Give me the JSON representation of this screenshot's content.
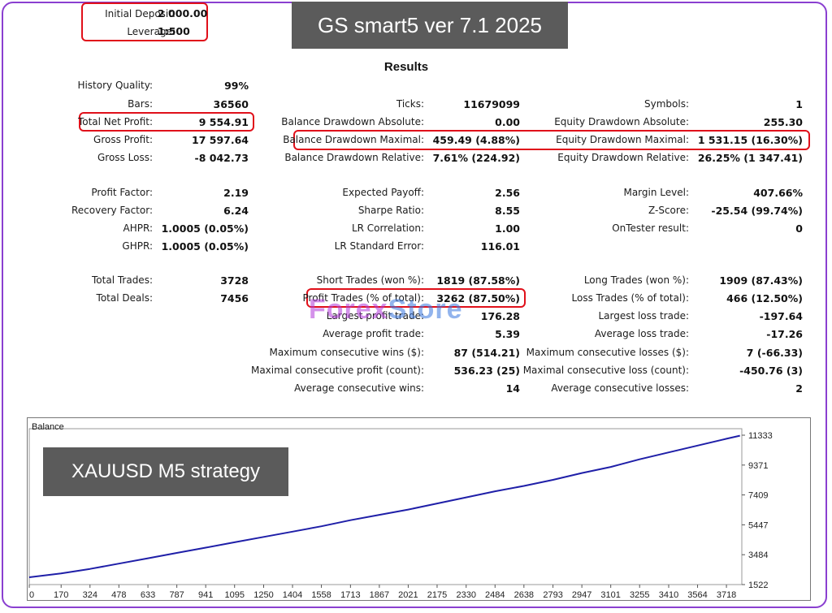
{
  "header": {
    "initial_deposit_label": "Initial Deposit:",
    "initial_deposit_value": "2 000.00",
    "leverage_label": "Leverage:",
    "leverage_value": "1:500",
    "banner_title": "GS smart5 ver 7.1 2025",
    "results_title": "Results"
  },
  "col1": [
    {
      "label": "History Quality:",
      "value": "99%"
    },
    {
      "label": "Bars:",
      "value": "36560"
    },
    {
      "label": "Total Net Profit:",
      "value": "9 554.91"
    },
    {
      "label": "Gross Profit:",
      "value": "17 597.64"
    },
    {
      "label": "Gross Loss:",
      "value": "-8 042.73"
    },
    {
      "label": "Profit Factor:",
      "value": "2.19"
    },
    {
      "label": "Recovery Factor:",
      "value": "6.24"
    },
    {
      "label": "AHPR:",
      "value": "1.0005 (0.05%)"
    },
    {
      "label": "GHPR:",
      "value": "1.0005 (0.05%)"
    },
    {
      "label": "Total Trades:",
      "value": "3728"
    },
    {
      "label": "Total Deals:",
      "value": "7456"
    }
  ],
  "col2": [
    {
      "label": "Ticks:",
      "value": "11679099"
    },
    {
      "label": "Balance Drawdown Absolute:",
      "value": "0.00"
    },
    {
      "label": "Balance Drawdown Maximal:",
      "value": "459.49 (4.88%)"
    },
    {
      "label": "Balance Drawdown Relative:",
      "value": "7.61% (224.92)"
    },
    {
      "label": "Expected Payoff:",
      "value": "2.56"
    },
    {
      "label": "Sharpe Ratio:",
      "value": "8.55"
    },
    {
      "label": "LR Correlation:",
      "value": "1.00"
    },
    {
      "label": "LR Standard Error:",
      "value": "116.01"
    },
    {
      "label": "Short Trades (won %):",
      "value": "1819 (87.58%)"
    },
    {
      "label": "Profit Trades (% of total):",
      "value": "3262 (87.50%)"
    },
    {
      "label": "Largest profit trade:",
      "value": "176.28"
    },
    {
      "label": "Average profit trade:",
      "value": "5.39"
    },
    {
      "label": "Maximum consecutive wins ($):",
      "value": "87 (514.21)"
    },
    {
      "label": "Maximal consecutive profit (count):",
      "value": "536.23 (25)"
    },
    {
      "label": "Average consecutive wins:",
      "value": "14"
    }
  ],
  "col3": [
    {
      "label": "Symbols:",
      "value": "1"
    },
    {
      "label": "Equity Drawdown Absolute:",
      "value": "255.30"
    },
    {
      "label": "Equity Drawdown Maximal:",
      "value": "1 531.15 (16.30%)"
    },
    {
      "label": "Equity Drawdown Relative:",
      "value": "26.25% (1 347.41)"
    },
    {
      "label": "Margin Level:",
      "value": "407.66%"
    },
    {
      "label": "Z-Score:",
      "value": "-25.54 (99.74%)"
    },
    {
      "label": "OnTester result:",
      "value": "0"
    },
    {
      "label": "Long Trades (won %):",
      "value": "1909 (87.43%)"
    },
    {
      "label": "Loss Trades (% of total):",
      "value": "466 (12.50%)"
    },
    {
      "label": "Largest loss trade:",
      "value": "-197.64"
    },
    {
      "label": "Average loss trade:",
      "value": "-17.26"
    },
    {
      "label": "Maximum consecutive losses ($):",
      "value": "7 (-66.33)"
    },
    {
      "label": "Maximal consecutive loss (count):",
      "value": "-450.76 (3)"
    },
    {
      "label": "Average consecutive losses:",
      "value": "2"
    }
  ],
  "watermark": {
    "part1": "Forex",
    "part2": "Store"
  },
  "strategy_banner": "XAUUSD M5 strategy",
  "colors": {
    "line": "#1f1fa8",
    "highlight": "#e0101a",
    "banner": "#5b5b5b",
    "frame": "#8a3fd0"
  },
  "chart_data": {
    "type": "line",
    "title": "Balance",
    "x_ticks": [
      "0",
      "170",
      "324",
      "478",
      "633",
      "787",
      "941",
      "1095",
      "1250",
      "1404",
      "1558",
      "1713",
      "1867",
      "2021",
      "2175",
      "2330",
      "2484",
      "2638",
      "2793",
      "2947",
      "3101",
      "3255",
      "3410",
      "3564",
      "3718"
    ],
    "y_ticks": [
      "11333",
      "9371",
      "7409",
      "5447",
      "3484",
      "1522"
    ],
    "xlim": [
      0,
      3800
    ],
    "ylim": [
      1522,
      11333
    ],
    "series": [
      {
        "values": [
          [
            0,
            2000
          ],
          [
            170,
            2250
          ],
          [
            324,
            2550
          ],
          [
            478,
            2900
          ],
          [
            633,
            3250
          ],
          [
            787,
            3600
          ],
          [
            941,
            3950
          ],
          [
            1095,
            4300
          ],
          [
            1250,
            4650
          ],
          [
            1404,
            5000
          ],
          [
            1558,
            5350
          ],
          [
            1713,
            5750
          ],
          [
            1867,
            6100
          ],
          [
            2021,
            6450
          ],
          [
            2175,
            6850
          ],
          [
            2330,
            7250
          ],
          [
            2484,
            7650
          ],
          [
            2638,
            8000
          ],
          [
            2793,
            8400
          ],
          [
            2947,
            8850
          ],
          [
            3101,
            9250
          ],
          [
            3255,
            9750
          ],
          [
            3410,
            10200
          ],
          [
            3564,
            10650
          ],
          [
            3718,
            11100
          ],
          [
            3790,
            11300
          ]
        ]
      }
    ]
  }
}
